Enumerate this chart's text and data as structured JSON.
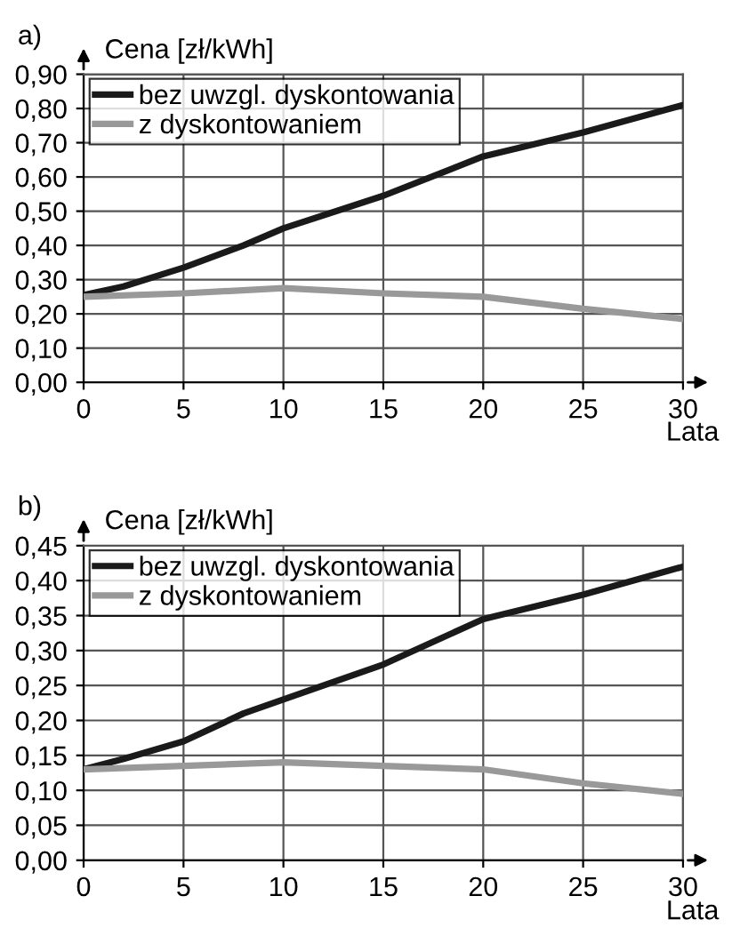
{
  "chart_data": [
    {
      "type": "line",
      "title": "a)",
      "ylabel": "Cena [zł/kWh]",
      "xlabel": "Lata",
      "series": [
        {
          "name": "bez uwzgl. dyskontowania",
          "color": "#1a1a1a",
          "x": [
            0,
            2,
            5,
            8,
            10,
            15,
            20,
            25,
            30
          ],
          "values": [
            0.255,
            0.28,
            0.335,
            0.4,
            0.45,
            0.545,
            0.66,
            0.73,
            0.81
          ]
        },
        {
          "name": "z dyskontowaniem",
          "color": "#999999",
          "x": [
            0,
            5,
            10,
            15,
            20,
            25,
            30
          ],
          "values": [
            0.25,
            0.26,
            0.275,
            0.26,
            0.25,
            0.215,
            0.185
          ]
        }
      ],
      "xlim": [
        0,
        30
      ],
      "xticks": [
        0,
        5,
        10,
        15,
        20,
        25,
        30
      ],
      "ylim": [
        0,
        0.9
      ],
      "yticks": [
        {
          "value": 0,
          "label": "0,00"
        },
        {
          "value": 0.1,
          "label": "0,10"
        },
        {
          "value": 0.2,
          "label": "0,20"
        },
        {
          "value": 0.3,
          "label": "0,30"
        },
        {
          "value": 0.4,
          "label": "0,40"
        },
        {
          "value": 0.5,
          "label": "0,50"
        },
        {
          "value": 0.6,
          "label": "0,60"
        },
        {
          "value": 0.7,
          "label": "0,70"
        },
        {
          "value": 0.8,
          "label": "0,80"
        },
        {
          "value": 0.9,
          "label": "0,90"
        }
      ],
      "grid": true,
      "legend": "top left",
      "marker": "none",
      "line_style": "solid"
    },
    {
      "type": "line",
      "title": "b)",
      "ylabel": "Cena [zł/kWh]",
      "xlabel": "Lata",
      "series": [
        {
          "name": "bez uwzgl. dyskontowania",
          "color": "#1a1a1a",
          "x": [
            0,
            2,
            5,
            8,
            10,
            15,
            20,
            25,
            30
          ],
          "values": [
            0.13,
            0.145,
            0.17,
            0.21,
            0.23,
            0.28,
            0.345,
            0.38,
            0.42
          ]
        },
        {
          "name": "z dyskontowaniem",
          "color": "#999999",
          "x": [
            0,
            5,
            10,
            15,
            20,
            25,
            30
          ],
          "values": [
            0.13,
            0.135,
            0.14,
            0.135,
            0.13,
            0.11,
            0.095
          ]
        }
      ],
      "xlim": [
        0,
        30
      ],
      "xticks": [
        0,
        5,
        10,
        15,
        20,
        25,
        30
      ],
      "ylim": [
        0,
        0.45
      ],
      "yticks": [
        {
          "value": 0,
          "label": "0,00"
        },
        {
          "value": 0.05,
          "label": "0,05"
        },
        {
          "value": 0.1,
          "label": "0,10"
        },
        {
          "value": 0.15,
          "label": "0,15"
        },
        {
          "value": 0.2,
          "label": "0,20"
        },
        {
          "value": 0.25,
          "label": "0,25"
        },
        {
          "value": 0.3,
          "label": "0,30"
        },
        {
          "value": 0.35,
          "label": "0,35"
        },
        {
          "value": 0.4,
          "label": "0,40"
        },
        {
          "value": 0.45,
          "label": "0,45"
        }
      ],
      "grid": true,
      "legend": "top left",
      "marker": "none",
      "line_style": "solid"
    }
  ]
}
